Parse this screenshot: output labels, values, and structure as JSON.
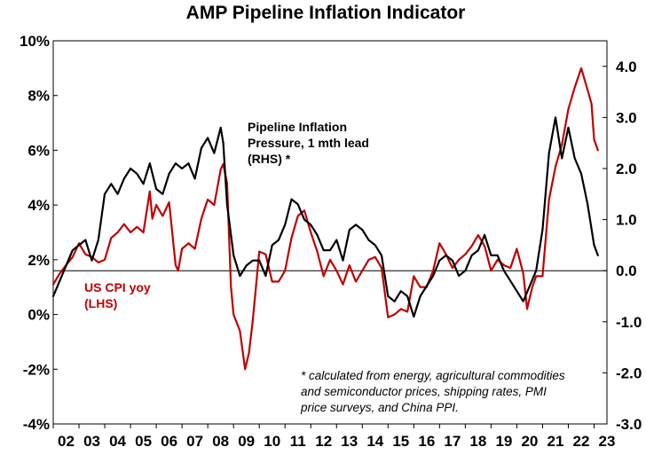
{
  "chart_data": {
    "type": "line",
    "title": "AMP Pipeline Inflation Indicator",
    "x_tick_labels": [
      "02",
      "03",
      "04",
      "05",
      "06",
      "07",
      "08",
      "09",
      "10",
      "11",
      "12",
      "13",
      "14",
      "15",
      "16",
      "17",
      "18",
      "19",
      "20",
      "21",
      "22",
      "23"
    ],
    "x_range": [
      2002.0,
      2023.5
    ],
    "left_axis": {
      "range": [
        -4,
        10
      ],
      "ticks": [
        "-4%",
        "-2%",
        "0%",
        "2%",
        "4%",
        "6%",
        "8%",
        "10%"
      ],
      "tick_values": [
        -4,
        -2,
        0,
        2,
        4,
        6,
        8,
        10
      ]
    },
    "right_axis": {
      "range": [
        -3.0,
        4.5
      ],
      "ticks": [
        "-3.0",
        "-2.0",
        "-1.0",
        "0.0",
        "1.0",
        "2.0",
        "3.0",
        "4.0"
      ],
      "tick_values": [
        -3,
        -2,
        -1,
        0,
        1,
        2,
        3,
        4
      ]
    },
    "grid": false,
    "zero_line": "right-axis 0.0 (left-axis 1.6%)",
    "series": [
      {
        "name": "US CPI yoy (LHS)",
        "label_lines": [
          "US CPI yoy",
          "(LHS)"
        ],
        "axis": "left",
        "color": "#c00000",
        "x": [
          2002.0,
          2002.25,
          2002.5,
          2002.75,
          2003.0,
          2003.25,
          2003.5,
          2003.75,
          2004.0,
          2004.25,
          2004.5,
          2004.75,
          2005.0,
          2005.25,
          2005.5,
          2005.75,
          2005.85,
          2006.0,
          2006.25,
          2006.5,
          2006.75,
          2006.85,
          2007.0,
          2007.25,
          2007.5,
          2007.75,
          2008.0,
          2008.25,
          2008.5,
          2008.6,
          2008.75,
          2008.9,
          2009.0,
          2009.25,
          2009.45,
          2009.6,
          2009.75,
          2010.0,
          2010.25,
          2010.5,
          2010.75,
          2011.0,
          2011.25,
          2011.5,
          2011.75,
          2012.0,
          2012.25,
          2012.5,
          2012.75,
          2013.0,
          2013.25,
          2013.5,
          2013.75,
          2014.0,
          2014.25,
          2014.5,
          2014.75,
          2015.0,
          2015.25,
          2015.5,
          2015.75,
          2016.0,
          2016.25,
          2016.5,
          2016.75,
          2017.0,
          2017.25,
          2017.5,
          2017.75,
          2018.0,
          2018.25,
          2018.5,
          2018.75,
          2019.0,
          2019.25,
          2019.5,
          2019.75,
          2020.0,
          2020.25,
          2020.4,
          2020.6,
          2020.75,
          2021.0,
          2021.25,
          2021.5,
          2021.75,
          2022.0,
          2022.25,
          2022.5,
          2022.75,
          2022.9,
          2023.0,
          2023.15
        ],
        "values": [
          1.1,
          1.5,
          1.8,
          2.1,
          2.6,
          2.2,
          2.1,
          1.9,
          2.0,
          2.8,
          3.0,
          3.3,
          3.0,
          3.2,
          3.0,
          4.5,
          3.5,
          4.0,
          3.6,
          4.1,
          1.8,
          1.6,
          2.4,
          2.6,
          2.4,
          3.5,
          4.2,
          4.0,
          5.3,
          5.5,
          4.8,
          1.0,
          0.0,
          -0.6,
          -2.0,
          -1.4,
          -0.2,
          2.3,
          2.2,
          1.2,
          1.2,
          1.6,
          2.8,
          3.6,
          3.8,
          3.0,
          2.3,
          1.4,
          2.0,
          1.6,
          1.1,
          1.8,
          1.2,
          1.6,
          2.0,
          2.1,
          1.7,
          -0.1,
          0.0,
          0.2,
          0.1,
          1.4,
          1.0,
          1.0,
          1.6,
          2.6,
          2.2,
          1.7,
          2.0,
          2.2,
          2.5,
          2.9,
          2.5,
          1.6,
          2.0,
          1.8,
          1.7,
          2.4,
          1.5,
          0.2,
          1.0,
          1.4,
          1.4,
          4.2,
          5.4,
          6.2,
          7.5,
          8.3,
          9.0,
          8.2,
          7.7,
          6.4,
          6.0
        ]
      },
      {
        "name": "Pipeline Inflation Pressure, 1 mth lead (RHS) *",
        "label_lines": [
          "Pipeline Inflation",
          "Pressure, 1 mth lead",
          "(RHS) *"
        ],
        "axis": "right",
        "color": "#000000",
        "x": [
          2002.0,
          2002.25,
          2002.5,
          2002.75,
          2003.0,
          2003.25,
          2003.5,
          2003.75,
          2004.0,
          2004.25,
          2004.5,
          2004.75,
          2005.0,
          2005.25,
          2005.5,
          2005.75,
          2006.0,
          2006.25,
          2006.5,
          2006.75,
          2007.0,
          2007.25,
          2007.5,
          2007.75,
          2008.0,
          2008.25,
          2008.5,
          2008.6,
          2008.75,
          2009.0,
          2009.25,
          2009.5,
          2009.75,
          2010.0,
          2010.25,
          2010.5,
          2010.75,
          2011.0,
          2011.25,
          2011.5,
          2011.75,
          2012.0,
          2012.25,
          2012.5,
          2012.75,
          2013.0,
          2013.25,
          2013.5,
          2013.75,
          2014.0,
          2014.25,
          2014.5,
          2014.75,
          2015.0,
          2015.25,
          2015.5,
          2015.75,
          2016.0,
          2016.25,
          2016.5,
          2016.75,
          2017.0,
          2017.25,
          2017.5,
          2017.75,
          2018.0,
          2018.25,
          2018.5,
          2018.75,
          2019.0,
          2019.25,
          2019.5,
          2019.75,
          2020.0,
          2020.25,
          2020.5,
          2020.75,
          2021.0,
          2021.25,
          2021.5,
          2021.75,
          2022.0,
          2022.25,
          2022.5,
          2022.75,
          2023.0,
          2023.15
        ],
        "values": [
          -0.5,
          -0.2,
          0.1,
          0.4,
          0.5,
          0.6,
          0.2,
          0.6,
          1.5,
          1.7,
          1.5,
          1.8,
          2.0,
          1.9,
          1.7,
          2.1,
          1.6,
          1.5,
          1.9,
          2.1,
          2.0,
          2.1,
          1.8,
          2.4,
          2.6,
          2.3,
          2.8,
          2.5,
          1.3,
          0.3,
          -0.1,
          0.1,
          0.2,
          0.2,
          -0.1,
          0.5,
          0.6,
          0.9,
          1.4,
          1.3,
          1.0,
          0.9,
          0.7,
          0.4,
          0.4,
          0.6,
          0.2,
          0.8,
          0.9,
          0.8,
          0.6,
          0.5,
          0.3,
          -0.5,
          -0.6,
          -0.4,
          -0.5,
          -0.9,
          -0.5,
          -0.3,
          -0.1,
          0.2,
          0.3,
          0.2,
          -0.1,
          0.0,
          0.3,
          0.4,
          0.7,
          0.3,
          0.3,
          0.0,
          -0.2,
          -0.4,
          -0.6,
          -0.3,
          0.0,
          0.8,
          2.3,
          3.0,
          2.2,
          2.8,
          2.2,
          1.9,
          1.3,
          0.5,
          0.3
        ]
      }
    ],
    "footnote_lines": [
      "* calculated from energy, agricultural commodities",
      "and semiconductor prices, shipping rates, PMI",
      "price surveys, and China PPI."
    ]
  }
}
